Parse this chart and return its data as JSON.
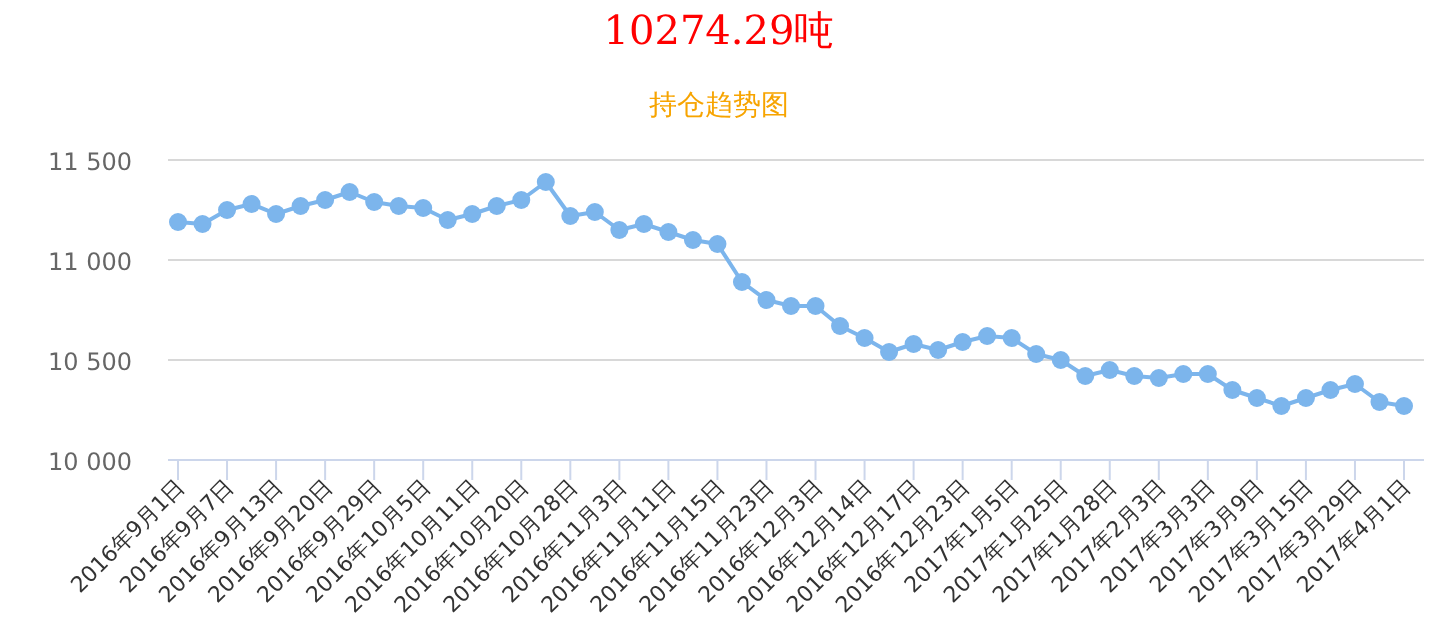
{
  "chart_data": {
    "type": "line",
    "title": "10274.29吨",
    "subtitle": "持仓趋势图",
    "categories": [
      "2016年9月1日",
      null,
      "2016年9月7日",
      null,
      "2016年9月13日",
      null,
      "2016年9月20日",
      null,
      "2016年9月29日",
      null,
      "2016年10月5日",
      null,
      "2016年10月11日",
      null,
      "2016年10月20日",
      null,
      "2016年10月28日",
      null,
      "2016年11月3日",
      null,
      "2016年11月11日",
      null,
      "2016年11月15日",
      null,
      "2016年11月23日",
      null,
      "2016年12月3日",
      null,
      "2016年12月14日",
      null,
      "2016年12月17日",
      null,
      "2016年12月23日",
      null,
      "2017年1月5日",
      null,
      "2017年1月25日",
      null,
      "2017年1月28日",
      null,
      "2017年2月3日",
      null,
      "2017年3月3日",
      null,
      "2017年3月9日",
      null,
      "2017年3月15日",
      null,
      "2017年3月29日",
      null,
      "2017年4月1日"
    ],
    "series": [
      {
        "color": "#7cb5ec",
        "values": [
          11190,
          11180,
          11250,
          11280,
          11230,
          11270,
          11300,
          11340,
          11290,
          11270,
          11260,
          11200,
          11230,
          11270,
          11300,
          11390,
          11220,
          11240,
          11150,
          11180,
          11140,
          11100,
          11080,
          10890,
          10800,
          10770,
          10770,
          10670,
          10610,
          10540,
          10580,
          10550,
          10590,
          10620,
          10610,
          10530,
          10500,
          10420,
          10450,
          10420,
          10410,
          10430,
          10430,
          10350,
          10310,
          10270,
          10310,
          10350,
          10380,
          10290,
          10270
        ]
      }
    ],
    "ylim": [
      10000,
      11500
    ],
    "yticks": [
      {
        "value": 10000,
        "label": "10 000"
      },
      {
        "value": 10500,
        "label": "10 500"
      },
      {
        "value": 11000,
        "label": "11 000"
      },
      {
        "value": 11500,
        "label": "11 500"
      }
    ],
    "grid": "y",
    "marker": "circle",
    "line_style": "solid"
  }
}
